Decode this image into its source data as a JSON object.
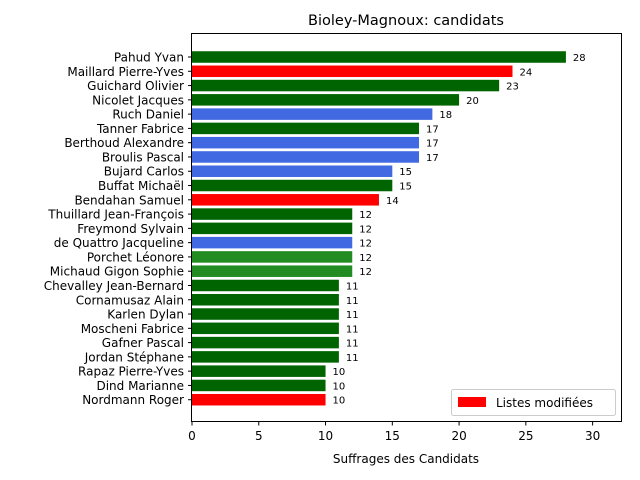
{
  "chart_data": {
    "type": "bar",
    "orientation": "horizontal",
    "title": "Bioley-Magnoux: candidats",
    "xlabel": "Suffrages des Candidats",
    "ylabel": "",
    "xlim": [
      0,
      32.2
    ],
    "xticks": [
      0,
      5,
      10,
      15,
      20,
      25,
      30
    ],
    "legend": {
      "position": "lower-right",
      "label": "Listes modifiées",
      "color": "#ff0000"
    },
    "colors": {
      "darkgreen": "#006400",
      "red": "#ff0000",
      "royalblue": "#4169e1",
      "forestgreen": "#228b22"
    },
    "bars": [
      {
        "label": "Pahud Yvan",
        "value": 28,
        "color": "#006400"
      },
      {
        "label": "Maillard Pierre-Yves",
        "value": 24,
        "color": "#ff0000"
      },
      {
        "label": "Guichard Olivier",
        "value": 23,
        "color": "#006400"
      },
      {
        "label": "Nicolet Jacques",
        "value": 20,
        "color": "#006400"
      },
      {
        "label": "Ruch Daniel",
        "value": 18,
        "color": "#4169e1"
      },
      {
        "label": "Tanner Fabrice",
        "value": 17,
        "color": "#006400"
      },
      {
        "label": "Berthoud Alexandre",
        "value": 17,
        "color": "#4169e1"
      },
      {
        "label": "Broulis Pascal",
        "value": 17,
        "color": "#4169e1"
      },
      {
        "label": "Bujard Carlos",
        "value": 15,
        "color": "#4169e1"
      },
      {
        "label": "Buffat Michaël",
        "value": 15,
        "color": "#006400"
      },
      {
        "label": "Bendahan Samuel",
        "value": 14,
        "color": "#ff0000"
      },
      {
        "label": "Thuillard Jean-François",
        "value": 12,
        "color": "#006400"
      },
      {
        "label": "Freymond Sylvain",
        "value": 12,
        "color": "#006400"
      },
      {
        "label": "de Quattro Jacqueline",
        "value": 12,
        "color": "#4169e1"
      },
      {
        "label": "Porchet Léonore",
        "value": 12,
        "color": "#228b22"
      },
      {
        "label": "Michaud Gigon Sophie",
        "value": 12,
        "color": "#228b22"
      },
      {
        "label": "Chevalley Jean-Bernard",
        "value": 11,
        "color": "#006400"
      },
      {
        "label": "Cornamusaz Alain",
        "value": 11,
        "color": "#006400"
      },
      {
        "label": "Karlen Dylan",
        "value": 11,
        "color": "#006400"
      },
      {
        "label": "Moscheni Fabrice",
        "value": 11,
        "color": "#006400"
      },
      {
        "label": "Gafner Pascal",
        "value": 11,
        "color": "#006400"
      },
      {
        "label": "Jordan Stéphane",
        "value": 11,
        "color": "#006400"
      },
      {
        "label": "Rapaz Pierre-Yves",
        "value": 10,
        "color": "#006400"
      },
      {
        "label": "Dind Marianne",
        "value": 10,
        "color": "#006400"
      },
      {
        "label": "Nordmann Roger",
        "value": 10,
        "color": "#ff0000"
      }
    ]
  }
}
